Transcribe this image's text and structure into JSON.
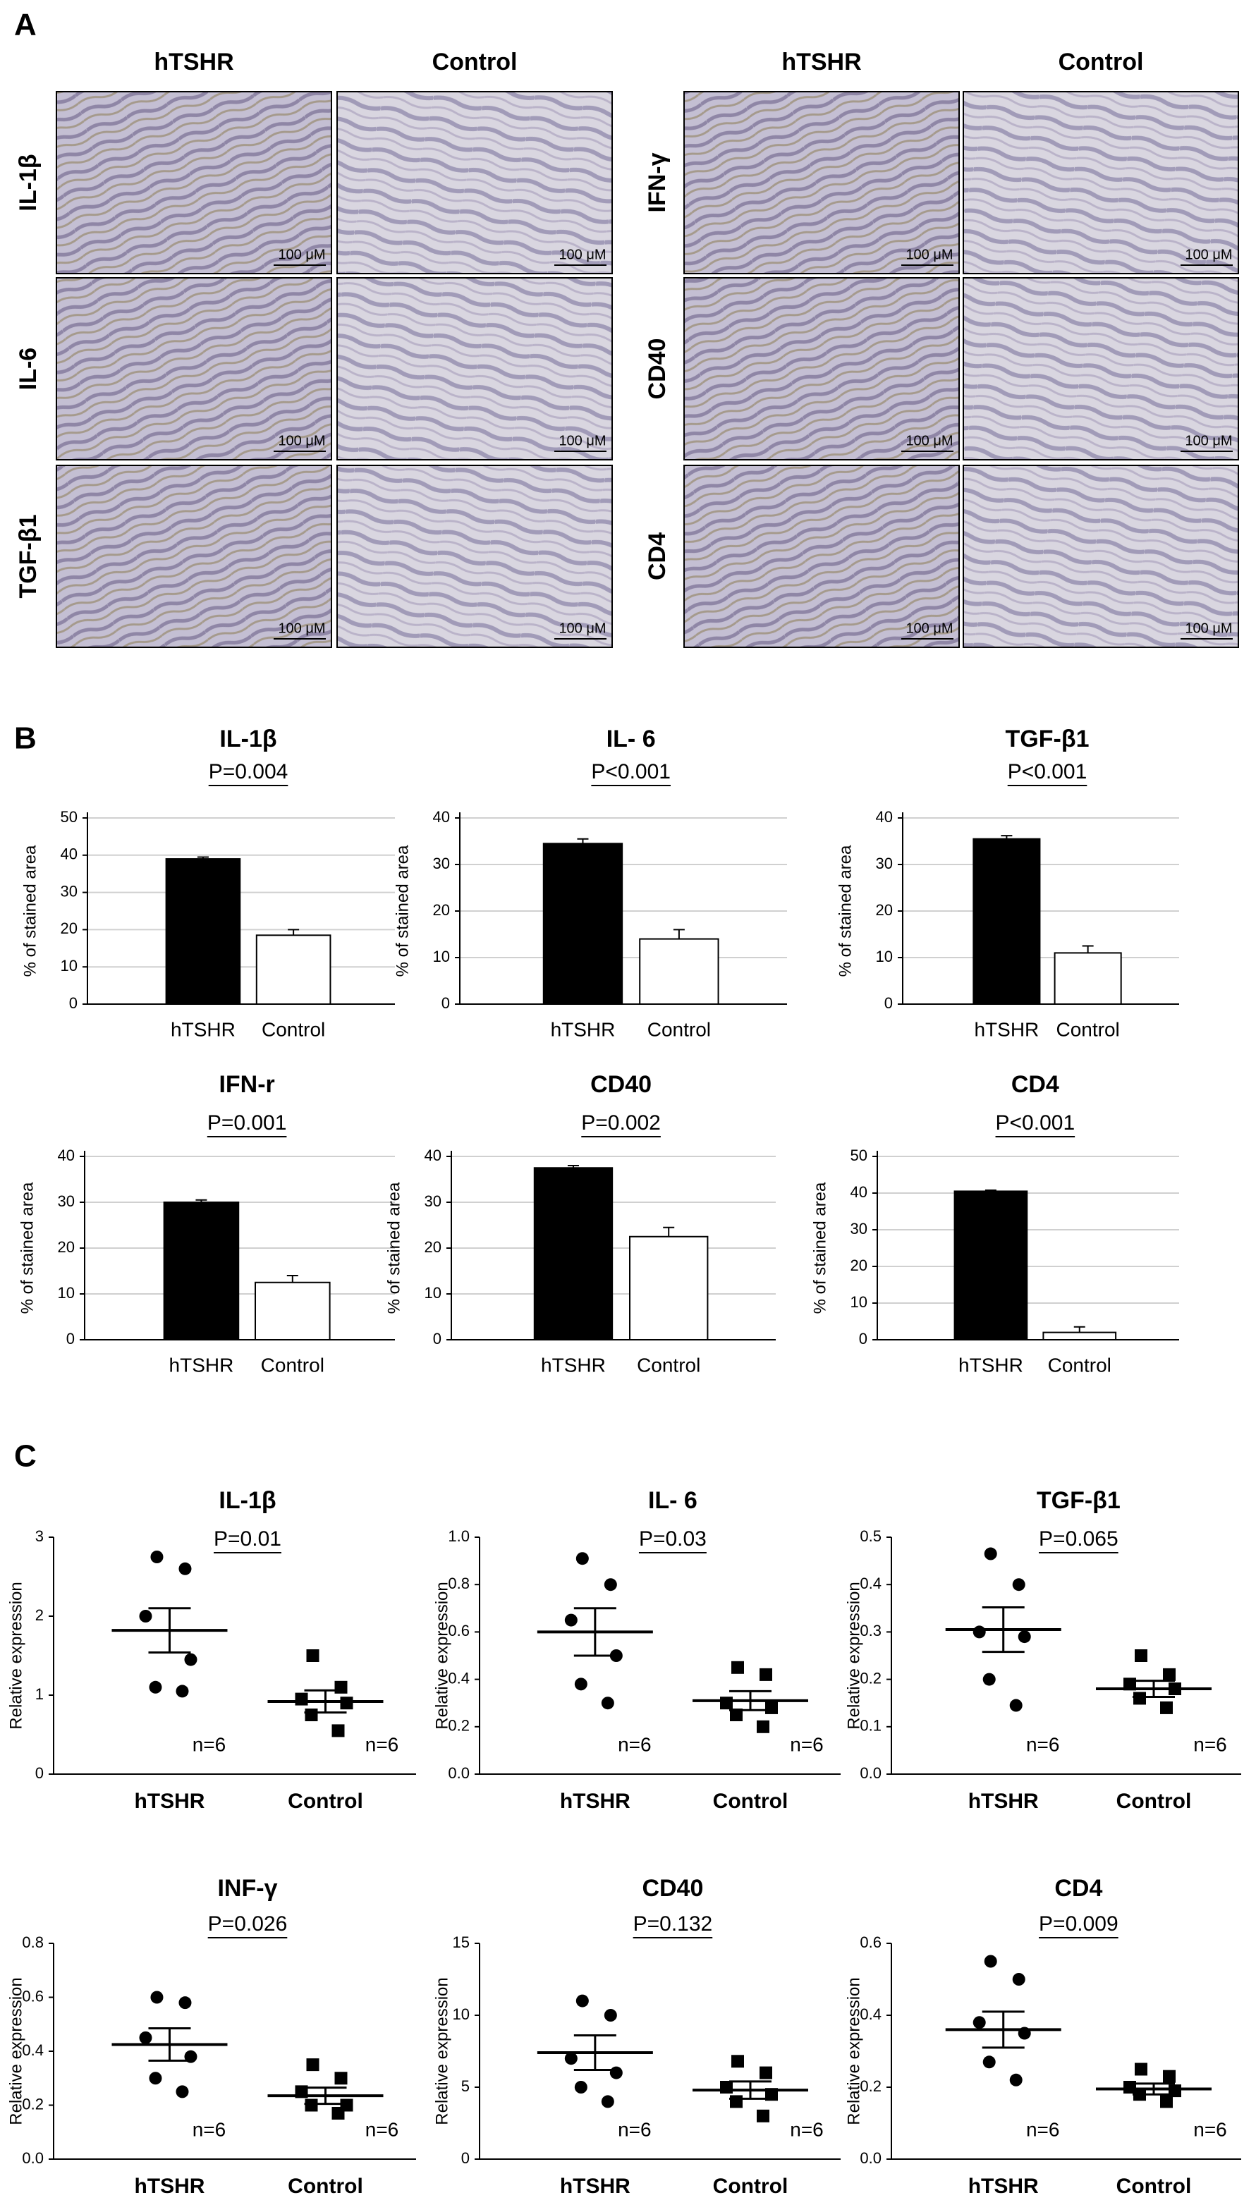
{
  "panel_a": {
    "label": "A",
    "groups": [
      {
        "columns": [
          "hTSHR",
          "Control"
        ],
        "rows": [
          "IL-1β",
          "IL-6",
          "TGF-β1"
        ]
      },
      {
        "columns": [
          "hTSHR",
          "Control"
        ],
        "rows": [
          "IFN-γ",
          "CD40",
          "CD4"
        ]
      }
    ],
    "scale_bar": "100 μM"
  },
  "panel_b": {
    "label": "B"
  },
  "panel_c": {
    "label": "C"
  },
  "chart_data": [
    {
      "type": "bar",
      "title": "IL-1β",
      "annotation": "P=0.004",
      "ylabel": "% of stained area",
      "categories": [
        "hTSHR",
        "Control"
      ],
      "values": [
        39,
        18.5
      ],
      "errors": [
        0.5,
        1.5
      ],
      "colors": [
        "#000000",
        "#ffffff"
      ],
      "ylim": [
        0,
        50
      ],
      "yticks": [
        0,
        10,
        20,
        30,
        40,
        50
      ],
      "grid": true
    },
    {
      "type": "bar",
      "title": "IL- 6",
      "annotation": "P<0.001",
      "ylabel": "% of stained area",
      "categories": [
        "hTSHR",
        "Control"
      ],
      "values": [
        34.5,
        14
      ],
      "errors": [
        1,
        2
      ],
      "colors": [
        "#000000",
        "#ffffff"
      ],
      "ylim": [
        0,
        40
      ],
      "yticks": [
        0,
        10,
        20,
        30,
        40
      ],
      "grid": true
    },
    {
      "type": "bar",
      "title": "TGF-β1",
      "annotation": "P<0.001",
      "ylabel": "% of stained area",
      "categories": [
        "hTSHR",
        "Control"
      ],
      "values": [
        35.5,
        11
      ],
      "errors": [
        0.7,
        1.5
      ],
      "colors": [
        "#000000",
        "#ffffff"
      ],
      "ylim": [
        0,
        40
      ],
      "yticks": [
        0,
        10,
        20,
        30,
        40
      ],
      "grid": true
    },
    {
      "type": "bar",
      "title": "IFN-r",
      "annotation": "P=0.001",
      "ylabel": "% of stained area",
      "categories": [
        "hTSHR",
        "Control"
      ],
      "values": [
        30,
        12.5
      ],
      "errors": [
        0.5,
        1.5
      ],
      "colors": [
        "#000000",
        "#ffffff"
      ],
      "ylim": [
        0,
        40
      ],
      "yticks": [
        0,
        10,
        20,
        30,
        40
      ],
      "grid": true
    },
    {
      "type": "bar",
      "title": "CD40",
      "annotation": "P=0.002",
      "ylabel": "% of stained area",
      "categories": [
        "hTSHR",
        "Control"
      ],
      "values": [
        37.5,
        22.5
      ],
      "errors": [
        0.5,
        2
      ],
      "colors": [
        "#000000",
        "#ffffff"
      ],
      "ylim": [
        0,
        40
      ],
      "yticks": [
        0,
        10,
        20,
        30,
        40
      ],
      "grid": true
    },
    {
      "type": "bar",
      "title": "CD4",
      "annotation": "P<0.001",
      "ylabel": "% of stained area",
      "categories": [
        "hTSHR",
        "Control"
      ],
      "values": [
        40.5,
        2
      ],
      "errors": [
        0.3,
        1.5
      ],
      "colors": [
        "#000000",
        "#ffffff"
      ],
      "ylim": [
        0,
        50
      ],
      "yticks": [
        0,
        10,
        20,
        30,
        40,
        50
      ],
      "grid": true
    },
    {
      "type": "dot",
      "title": "IL-1β",
      "annotation": "P=0.01",
      "ylabel": "Relative expression",
      "categories": [
        "hTSHR",
        "Control"
      ],
      "points": [
        [
          2.75,
          2.6,
          2.0,
          1.45,
          1.1,
          1.05
        ],
        [
          1.5,
          1.1,
          0.95,
          0.9,
          0.75,
          0.55
        ]
      ],
      "mean": [
        1.82,
        0.92
      ],
      "sem": [
        0.28,
        0.14
      ],
      "n_labels": [
        "n=6",
        "n=6"
      ],
      "markers": [
        "circle",
        "square"
      ],
      "color": "#000000",
      "ylim": [
        0,
        3
      ],
      "yticks": [
        0,
        1,
        2,
        3
      ]
    },
    {
      "type": "dot",
      "title": "IL- 6",
      "annotation": "P=0.03",
      "ylabel": "Relative expression",
      "categories": [
        "hTSHR",
        "Control"
      ],
      "points": [
        [
          0.91,
          0.8,
          0.65,
          0.5,
          0.38,
          0.3
        ],
        [
          0.45,
          0.42,
          0.3,
          0.28,
          0.25,
          0.2
        ]
      ],
      "mean": [
        0.6,
        0.31
      ],
      "sem": [
        0.1,
        0.04
      ],
      "n_labels": [
        "n=6",
        "n=6"
      ],
      "markers": [
        "circle",
        "square"
      ],
      "color": "#000000",
      "ylim": [
        0,
        1
      ],
      "yticks": [
        {
          "value": 0,
          "label": "0.0"
        },
        0.2,
        0.4,
        0.6,
        0.8,
        {
          "value": 1,
          "label": "1.0"
        }
      ]
    },
    {
      "type": "dot",
      "title": "TGF-β1",
      "annotation": "P=0.065",
      "ylabel": "Relative expression",
      "categories": [
        "hTSHR",
        "Control"
      ],
      "points": [
        [
          0.465,
          0.4,
          0.3,
          0.29,
          0.2,
          0.145
        ],
        [
          0.25,
          0.21,
          0.19,
          0.18,
          0.16,
          0.14
        ]
      ],
      "mean": [
        0.305,
        0.18
      ],
      "sem": [
        0.047,
        0.017
      ],
      "n_labels": [
        "n=6",
        "n=6"
      ],
      "markers": [
        "circle",
        "square"
      ],
      "color": "#000000",
      "ylim": [
        0,
        0.5
      ],
      "yticks": [
        {
          "value": 0,
          "label": "0.0"
        },
        0.1,
        0.2,
        0.3,
        0.4,
        0.5
      ]
    },
    {
      "type": "dot",
      "title": "INF-γ",
      "annotation": "P=0.026",
      "ylabel": "Relative expression",
      "categories": [
        "hTSHR",
        "Control"
      ],
      "points": [
        [
          0.6,
          0.58,
          0.45,
          0.38,
          0.3,
          0.25
        ],
        [
          0.35,
          0.3,
          0.25,
          0.2,
          0.2,
          0.17
        ]
      ],
      "mean": [
        0.425,
        0.235
      ],
      "sem": [
        0.06,
        0.03
      ],
      "n_labels": [
        "n=6",
        "n=6"
      ],
      "markers": [
        "circle",
        "square"
      ],
      "color": "#000000",
      "ylim": [
        0,
        0.8
      ],
      "yticks": [
        {
          "value": 0,
          "label": "0.0"
        },
        0.2,
        0.4,
        0.6,
        0.8
      ]
    },
    {
      "type": "dot",
      "title": "CD40",
      "annotation": "P=0.132",
      "ylabel": "Relative expression",
      "categories": [
        "hTSHR",
        "Control"
      ],
      "points": [
        [
          11,
          10,
          7,
          6,
          5,
          4
        ],
        [
          6.8,
          6,
          5,
          4.5,
          4,
          3
        ]
      ],
      "mean": [
        7.4,
        4.8
      ],
      "sem": [
        1.2,
        0.6
      ],
      "n_labels": [
        "n=6",
        "n=6"
      ],
      "markers": [
        "circle",
        "square"
      ],
      "color": "#000000",
      "ylim": [
        0,
        15
      ],
      "yticks": [
        0,
        5,
        10,
        15
      ]
    },
    {
      "type": "dot",
      "title": "CD4",
      "annotation": "P=0.009",
      "ylabel": "Relative expression",
      "categories": [
        "hTSHR",
        "Control"
      ],
      "points": [
        [
          0.55,
          0.5,
          0.38,
          0.35,
          0.27,
          0.22
        ],
        [
          0.25,
          0.23,
          0.2,
          0.19,
          0.18,
          0.16
        ]
      ],
      "mean": [
        0.36,
        0.195
      ],
      "sem": [
        0.05,
        0.015
      ],
      "n_labels": [
        "n=6",
        "n=6"
      ],
      "markers": [
        "circle",
        "square"
      ],
      "color": "#000000",
      "ylim": [
        0,
        0.6
      ],
      "yticks": [
        {
          "value": 0,
          "label": "0.0"
        },
        0.2,
        0.4,
        0.6
      ]
    }
  ]
}
